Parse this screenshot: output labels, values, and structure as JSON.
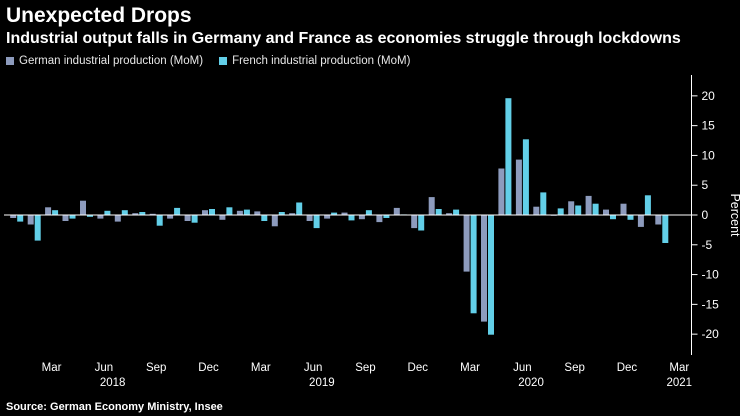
{
  "title": "Unexpected Drops",
  "subtitle": "Industrial output falls in Germany and France as economies struggle through lockdowns",
  "source": "Source: German Economy Ministry, Insee",
  "legend": [
    {
      "label": "German industrial production (MoM)",
      "color": "#8d9bbd"
    },
    {
      "label": "French industrial production (MoM)",
      "color": "#62cfe8"
    }
  ],
  "colors": {
    "background": "#000000",
    "axis": "#ffffff",
    "german_bar": "#8d9bbd",
    "french_bar": "#62cfe8"
  },
  "chart_data": {
    "type": "bar",
    "title": "Unexpected Drops",
    "ylabel": "Percent",
    "ylim": [
      -23.5,
      23.5
    ],
    "yticks": [
      20,
      15,
      10,
      5,
      0,
      -5,
      -10,
      -15,
      -20
    ],
    "x_slots": 39,
    "legend_position": "top-left",
    "grid": false,
    "categories": [
      "Jan 2018",
      "Feb 2018",
      "Mar 2018",
      "Apr 2018",
      "May 2018",
      "Jun 2018",
      "Jul 2018",
      "Aug 2018",
      "Sep 2018",
      "Oct 2018",
      "Nov 2018",
      "Dec 2018",
      "Jan 2019",
      "Feb 2019",
      "Mar 2019",
      "Apr 2019",
      "May 2019",
      "Jun 2019",
      "Jul 2019",
      "Aug 2019",
      "Sep 2019",
      "Oct 2019",
      "Nov 2019",
      "Dec 2019",
      "Jan 2020",
      "Feb 2020",
      "Mar 2020",
      "Apr 2020",
      "May 2020",
      "Jun 2020",
      "Jul 2020",
      "Aug 2020",
      "Sep 2020",
      "Oct 2020",
      "Nov 2020",
      "Dec 2020",
      "Jan 2021",
      "Feb 2021"
    ],
    "series": [
      {
        "name": "German industrial production (MoM)",
        "values": [
          -0.5,
          -1.6,
          1.3,
          -1.0,
          2.4,
          -0.6,
          -1.1,
          0.3,
          0.2,
          -0.6,
          -1.0,
          0.8,
          -0.8,
          0.7,
          0.6,
          -1.9,
          0.3,
          -1.0,
          -0.6,
          0.4,
          -0.7,
          -1.2,
          1.2,
          -2.2,
          3.0,
          0.3,
          -9.5,
          -17.9,
          7.8,
          9.3,
          1.4,
          -0.1,
          2.3,
          3.2,
          0.9,
          1.9,
          -2.0,
          -1.6
        ]
      },
      {
        "name": "French industrial production (MoM)",
        "values": [
          -1.1,
          -4.3,
          0.8,
          -0.6,
          -0.3,
          0.7,
          0.8,
          0.5,
          -1.8,
          1.2,
          -1.3,
          1.0,
          1.3,
          0.9,
          -1.0,
          0.5,
          2.1,
          -2.2,
          0.4,
          -0.9,
          0.8,
          -0.5,
          0.1,
          -2.6,
          1.0,
          0.9,
          -16.5,
          -20.1,
          19.6,
          12.7,
          3.8,
          1.1,
          1.6,
          1.9,
          -0.7,
          -0.8,
          3.3,
          -4.7
        ]
      }
    ],
    "x_ticks": [
      {
        "index": 2,
        "label": "Mar"
      },
      {
        "index": 5,
        "label": "Jun"
      },
      {
        "index": 8,
        "label": "Sep"
      },
      {
        "index": 11,
        "label": "Dec"
      },
      {
        "index": 14,
        "label": "Mar"
      },
      {
        "index": 17,
        "label": "Jun"
      },
      {
        "index": 20,
        "label": "Sep"
      },
      {
        "index": 23,
        "label": "Dec"
      },
      {
        "index": 26,
        "label": "Mar"
      },
      {
        "index": 29,
        "label": "Jun"
      },
      {
        "index": 32,
        "label": "Sep"
      },
      {
        "index": 35,
        "label": "Dec"
      },
      {
        "index": 38,
        "label": "Mar"
      }
    ],
    "year_ticks": [
      {
        "index": 5.5,
        "label": "2018"
      },
      {
        "index": 17.5,
        "label": "2019"
      },
      {
        "index": 29.5,
        "label": "2020"
      },
      {
        "index": 38,
        "label": "2021"
      }
    ]
  }
}
